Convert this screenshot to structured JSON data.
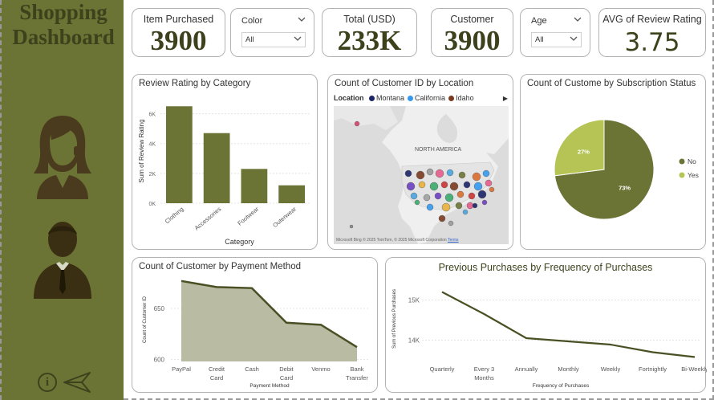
{
  "sidebar": {
    "title_line1": "Shopping",
    "title_line2": "Dashboard"
  },
  "kpis": {
    "items_purchased": {
      "label": "Item Purchased",
      "value": "3900"
    },
    "total_usd": {
      "label": "Total (USD)",
      "value": "233K"
    },
    "customer": {
      "label": "Customer",
      "value": "3900"
    },
    "avg_review": {
      "label": "AVG of Review Rating",
      "value": "3.75"
    }
  },
  "slicers": {
    "color": {
      "label": "Color",
      "value": "All"
    },
    "age": {
      "label": "Age",
      "value": "All"
    }
  },
  "visuals": {
    "review_by_category": {
      "title": "Review Rating by Category"
    },
    "location_map": {
      "title": "Count of Customer ID by Location",
      "legend_title": "Location",
      "legend_items": [
        "Montana",
        "California",
        "Idaho"
      ],
      "legend_colors": [
        "#1a2466",
        "#3399ee",
        "#7a3a1e"
      ],
      "map_label": "NORTH AMERICA",
      "attribution": "© 2025 TomTom, © 2025 Microsoft Corporation",
      "bing_label": "Microsoft Bing",
      "terms_label": "Terms"
    },
    "subscription": {
      "title": "Count of Custome by Subscription Status"
    },
    "payment": {
      "title": "Count of Customer by Payment Method"
    },
    "frequency": {
      "title": "Previous Purchases by Frequency of Purchases"
    }
  },
  "chart_data": [
    {
      "id": "review_by_category",
      "type": "bar",
      "title": "Review Rating by Category",
      "categories": [
        "Clothing",
        "Accessories",
        "Footwear",
        "Outerwear"
      ],
      "values": [
        6500,
        4700,
        2300,
        1200
      ],
      "xlabel": "Category",
      "ylabel": "Sum of Review Rating",
      "ylim": [
        0,
        7000
      ],
      "yticks": [
        0,
        2000,
        4000,
        6000
      ],
      "ytick_labels": [
        "0K",
        "2K",
        "4K",
        "6K"
      ],
      "color": "#6b7335"
    },
    {
      "id": "subscription",
      "type": "pie",
      "title": "Count of Custome by Subscription Status",
      "categories": [
        "No",
        "Yes"
      ],
      "values": [
        73,
        27
      ],
      "labels": [
        "73%",
        "27%"
      ],
      "colors": [
        "#6b7335",
        "#b5c454"
      ],
      "legend": "right"
    },
    {
      "id": "payment",
      "type": "area",
      "title": "Count of Customer by Payment Method",
      "categories": [
        "PayPal",
        "Credit Card",
        "Cash",
        "Debit Card",
        "Venmo",
        "Bank Transfer"
      ],
      "values": [
        677,
        671,
        670,
        636,
        634,
        612
      ],
      "xlabel": "Payment Method",
      "ylabel": "Count of Customer ID",
      "ylim": [
        598,
        680
      ],
      "yticks": [
        600,
        650
      ],
      "ytick_labels": [
        "600",
        "650"
      ],
      "color": "#4a5023",
      "fill": "#b9bca3"
    },
    {
      "id": "frequency",
      "type": "line",
      "title": "Previous Purchases by Frequency of Purchases",
      "categories": [
        "Quarterly",
        "Every 3 Months",
        "Annually",
        "Monthly",
        "Weekly",
        "Fortnightly",
        "Bi-Weekly"
      ],
      "values": [
        15200,
        14650,
        14050,
        13970,
        13890,
        13700,
        13580
      ],
      "xlabel": "Frequency of Purchases",
      "ylabel": "Sum of Previous Purchases",
      "ylim": [
        13450,
        15450
      ],
      "yticks": [
        14000,
        15000
      ],
      "ytick_labels": [
        "14K",
        "15K"
      ],
      "color": "#4a5023"
    }
  ]
}
